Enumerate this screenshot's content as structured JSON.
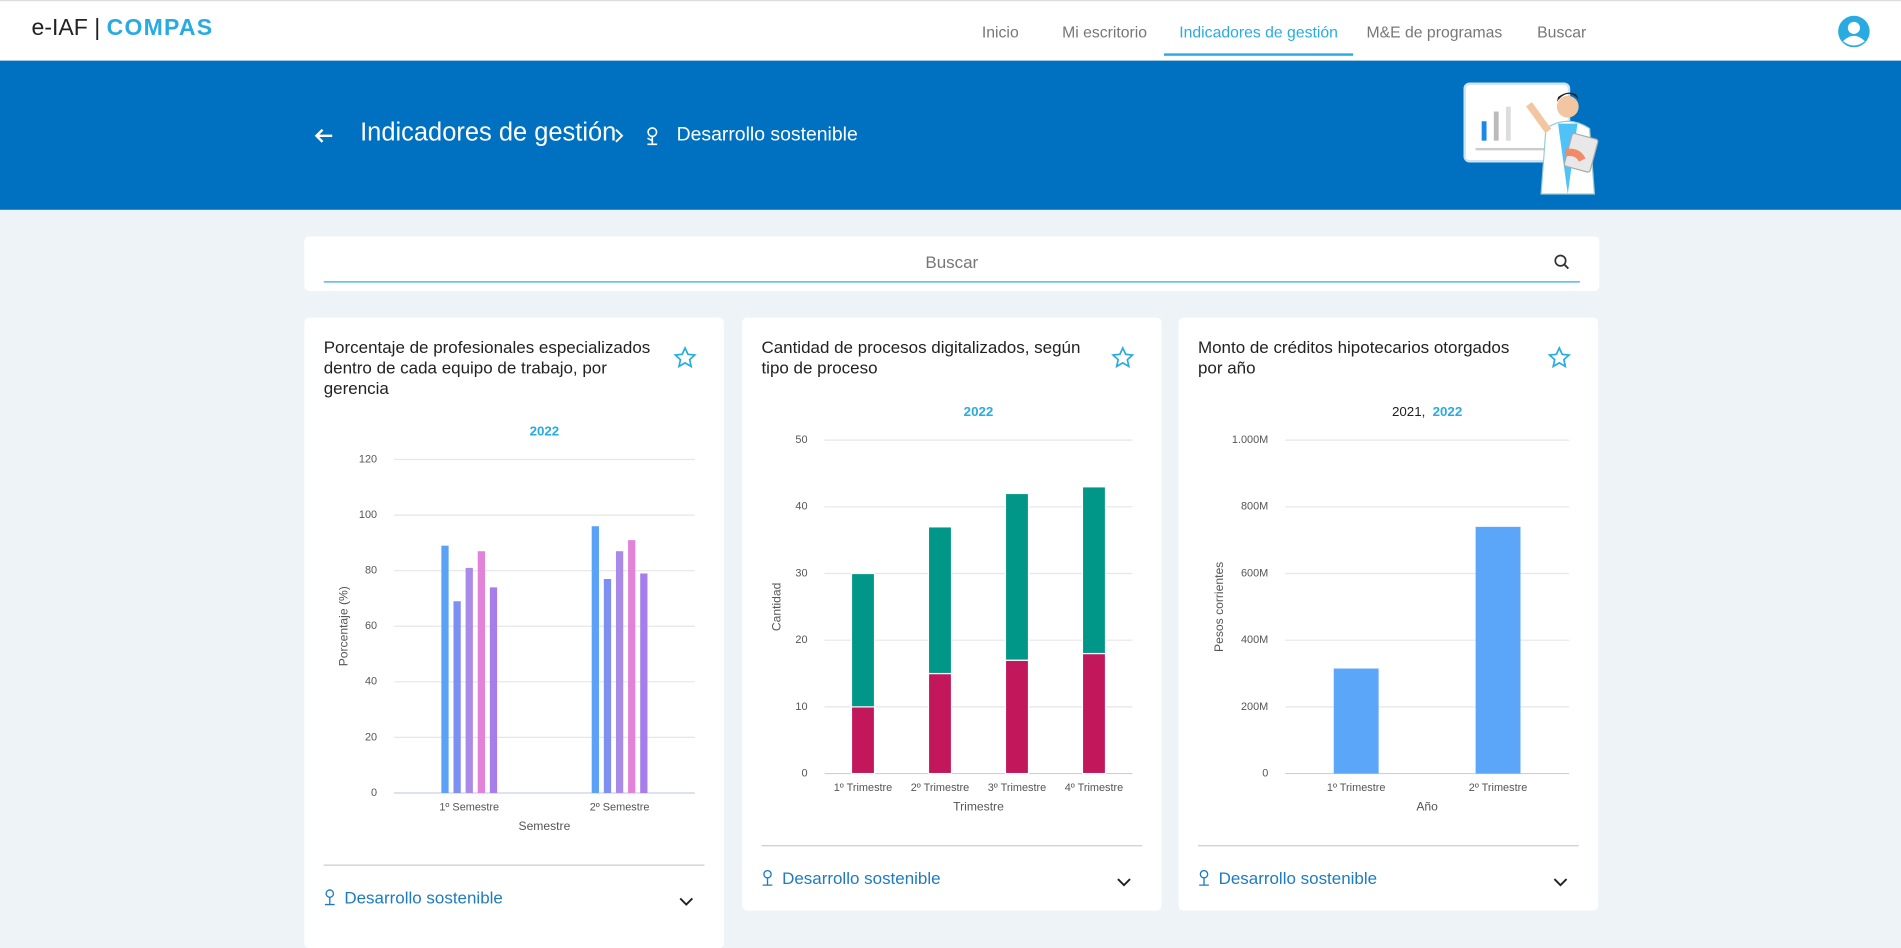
{
  "nav": {
    "brand": "e-IAF |",
    "brand_accent": "COMPAS",
    "items": [
      "Inicio",
      "Mi escritorio",
      "Indicadores de gestión",
      "M&E de programas",
      "Buscar"
    ]
  },
  "header": {
    "title": "Indicadores de gestión",
    "breadcrumb": "Desarrollo sostenible"
  },
  "search": {
    "placeholder": "Buscar"
  },
  "chart_data": [
    {
      "type": "bar",
      "title": "Porcentaje de profesionales especializados dentro de cada equipo de trabajo, por gerencia",
      "filters": [
        "2022"
      ],
      "categories": [
        "1º Semestre",
        "2º Semestre"
      ],
      "series": [
        {
          "color": "#5aa2f8",
          "values": [
            89,
            96
          ]
        },
        {
          "color": "#7d8ff0",
          "values": [
            69,
            77
          ]
        },
        {
          "color": "#a98ae9",
          "values": [
            81,
            87
          ]
        },
        {
          "color": "#e283d9",
          "values": [
            87,
            91
          ]
        },
        {
          "color": "#a77ee9",
          "values": [
            74,
            79
          ]
        }
      ],
      "x_label": "Semestre",
      "y_label": "Porcentaje (%)",
      "ylim": [
        0,
        120
      ],
      "yticks": [
        0,
        20,
        40,
        60,
        80,
        100,
        120
      ],
      "grid": true
    },
    {
      "type": "stacked_bar",
      "title": "Cantidad de procesos digitalizados, según tipo de proceso",
      "filters": [
        "2022"
      ],
      "categories": [
        "1º Trimestre",
        "2º Trimestre",
        "3º Trimestre",
        "4º Trimestre"
      ],
      "series": [
        {
          "color": "#c2185b",
          "values": [
            10,
            15,
            17,
            18
          ]
        },
        {
          "color": "#009688",
          "values": [
            20,
            22,
            25,
            25
          ]
        }
      ],
      "x_label": "Trimestre",
      "y_label": "Cantidad",
      "ylim": [
        0,
        50
      ],
      "yticks": [
        0,
        10,
        20,
        30,
        40,
        50
      ],
      "grid": true
    },
    {
      "type": "bar",
      "title": "Monto de créditos hipotecarios otorgados por año",
      "filters": [
        "2021",
        "2022"
      ],
      "filter_separator": ",",
      "categories": [
        "1º Trimestre",
        "2º Trimestre"
      ],
      "values": [
        315000000,
        740000000
      ],
      "color": "#5ca6fa",
      "x_label": "Año",
      "y_label": "Pesos corrientes",
      "ylim": [
        0,
        1000000000
      ],
      "yticks": [
        0,
        {
          "value": 200000000,
          "label": "200M"
        },
        {
          "value": 400000000,
          "label": "400M"
        },
        {
          "value": 600000000,
          "label": "600M"
        },
        {
          "value": 800000000,
          "label": "800M"
        },
        {
          "value": 1000000000,
          "label": "1.000M"
        }
      ],
      "grid": true
    }
  ],
  "cards": [
    {
      "category": "Desarrollo sostenible"
    },
    {
      "category": "Desarrollo sostenible"
    },
    {
      "category": "Desarrollo sostenible"
    }
  ]
}
